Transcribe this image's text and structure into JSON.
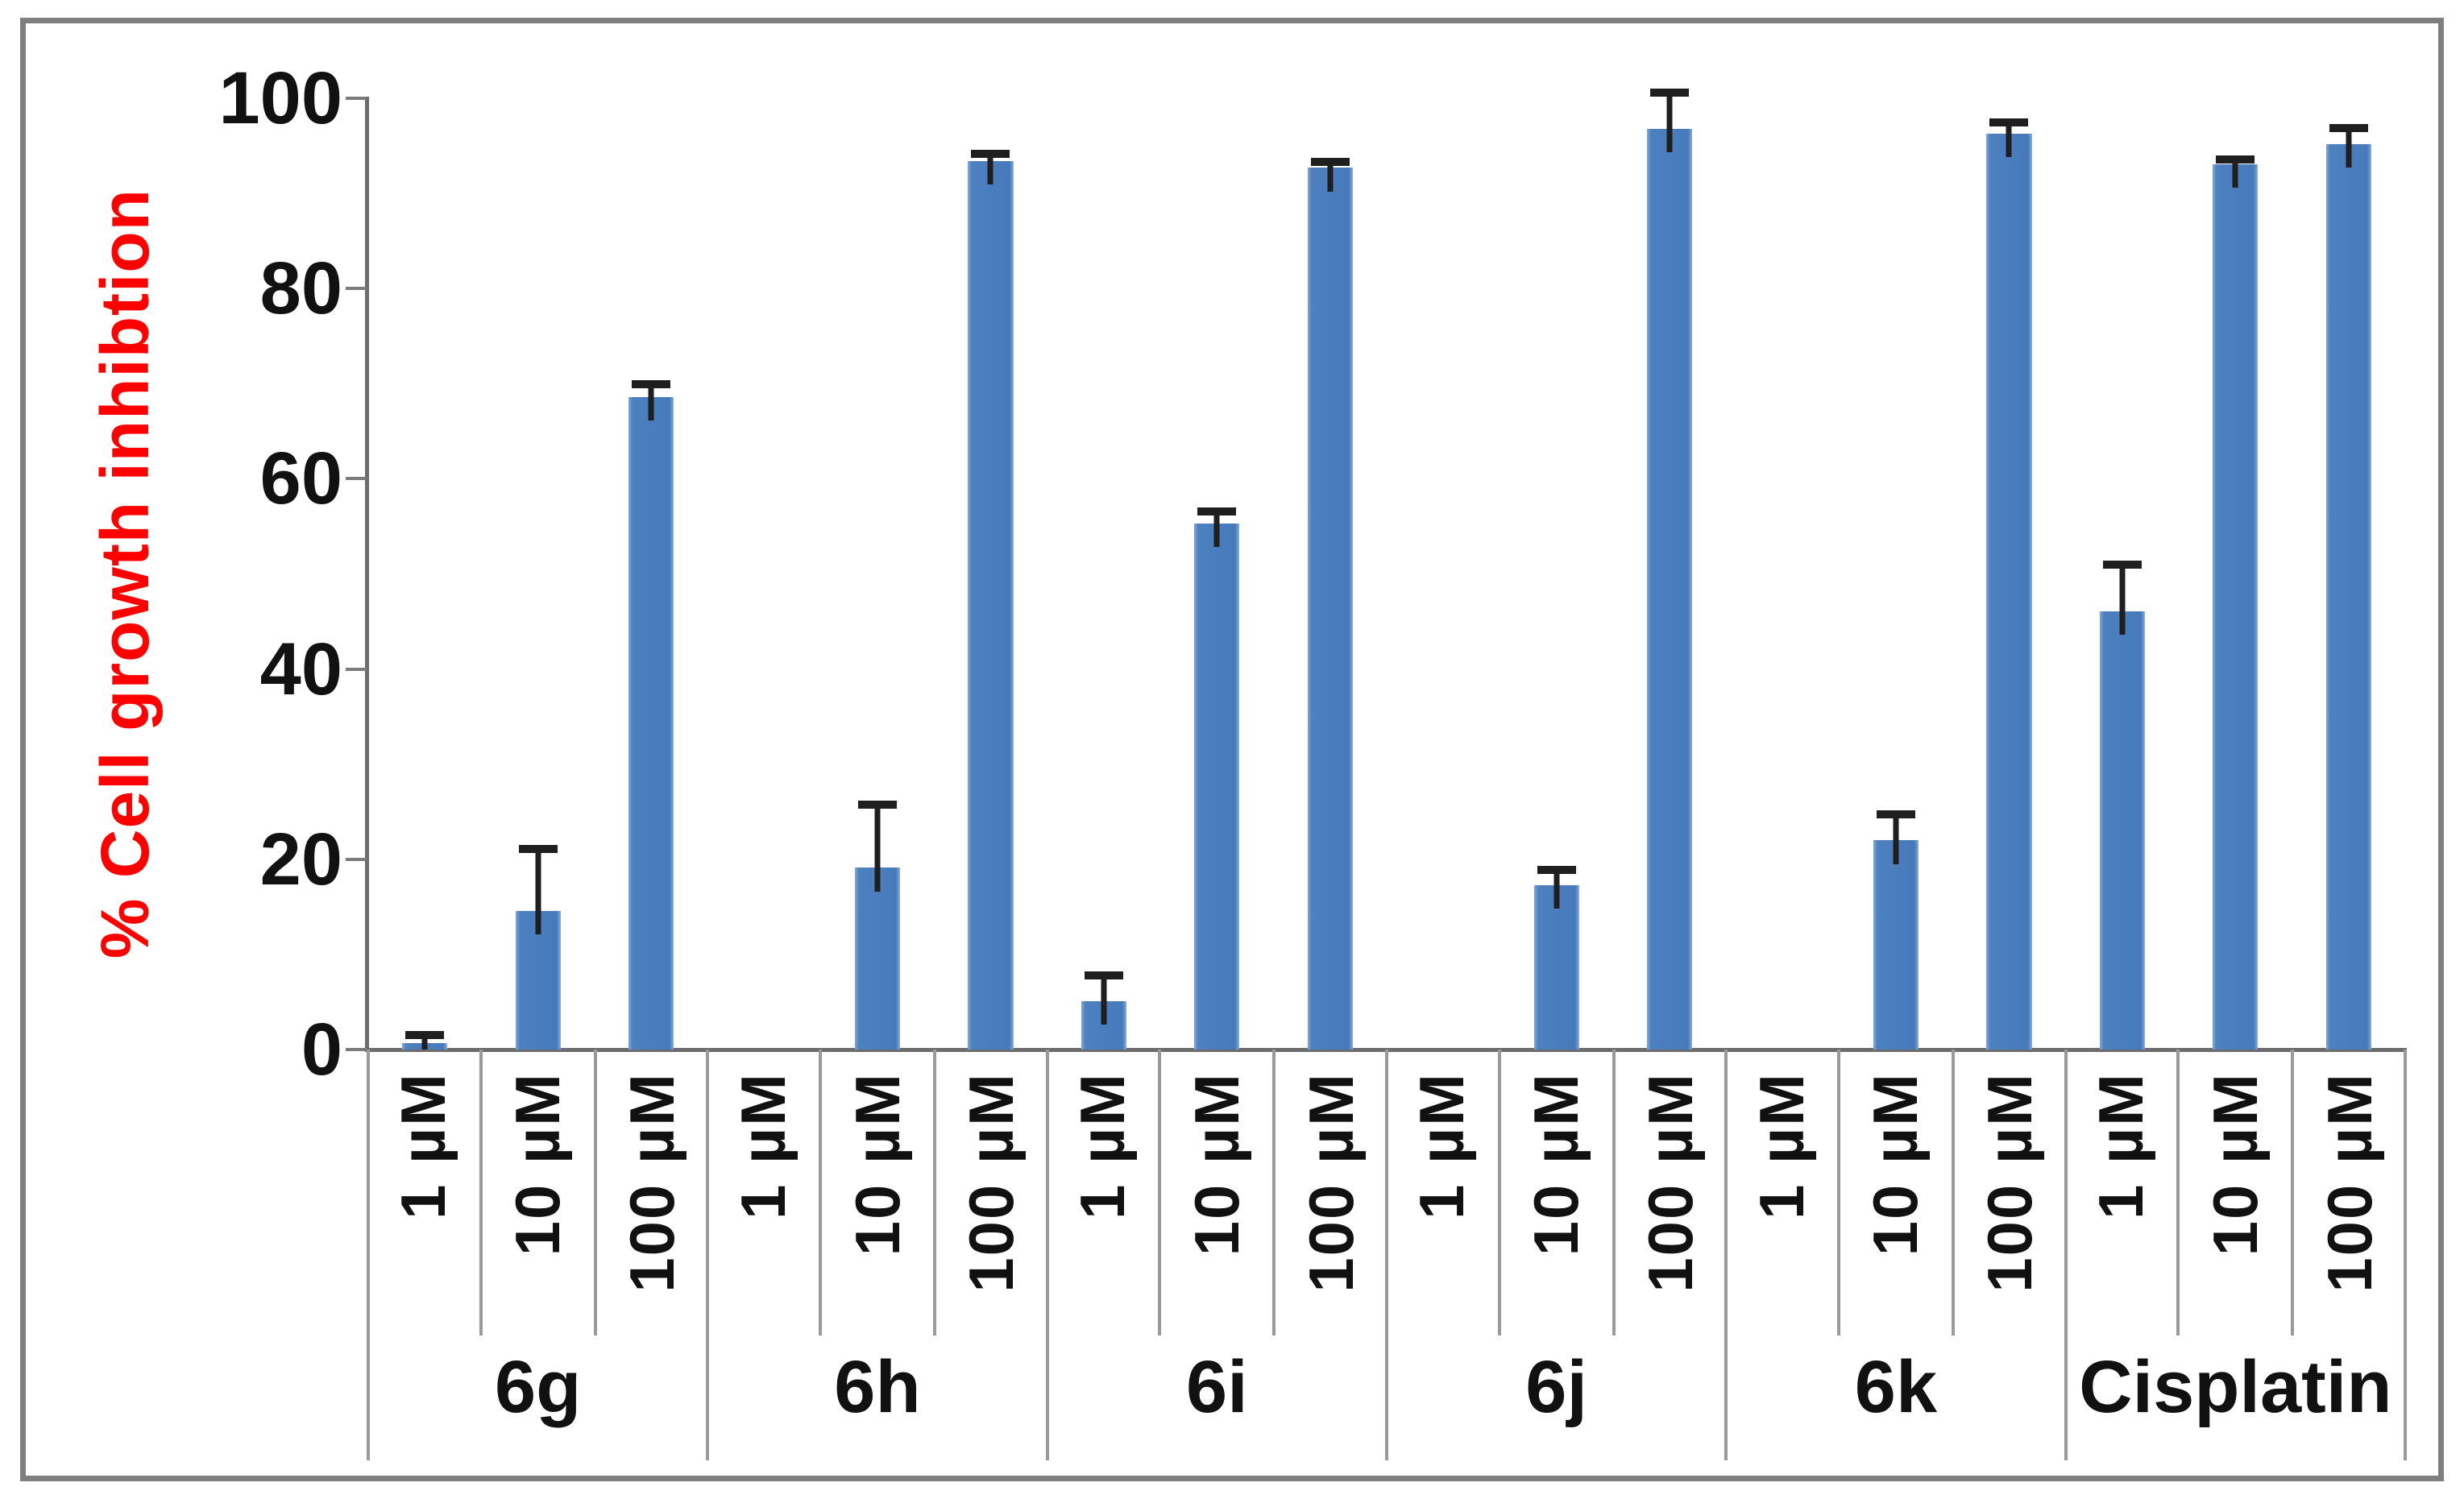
{
  "figure": {
    "background": "#ffffff",
    "border_color": "#7f7f7f"
  },
  "chart_data": {
    "type": "bar",
    "title": "",
    "ylabel": "% Cell growth inhibtion",
    "ylabel_color": "#ff0000",
    "xlabel": "",
    "ylim": [
      0,
      100
    ],
    "yticks": [
      0,
      20,
      40,
      60,
      80,
      100
    ],
    "grid": false,
    "legend": null,
    "bar_color": "#4F81BD",
    "error_bar_color": "#1f1f1f",
    "concentration_labels": [
      "1 µM",
      "10 µM",
      "100 µM"
    ],
    "groups": [
      {
        "label": "6g",
        "values": [
          0.7,
          14.6,
          68.6
        ],
        "errors": [
          0.8,
          6.5,
          1.3
        ]
      },
      {
        "label": "6h",
        "values": [
          0,
          19.1,
          93.4
        ],
        "errors": [
          0,
          6.6,
          0.8
        ]
      },
      {
        "label": "6i",
        "values": [
          5.1,
          55.3,
          92.7
        ],
        "errors": [
          2.7,
          1.3,
          0.6
        ]
      },
      {
        "label": "6j",
        "values": [
          0,
          17.3,
          96.8
        ],
        "errors": [
          0,
          1.6,
          3.8
        ]
      },
      {
        "label": "6k",
        "values": [
          0,
          22.0,
          96.3
        ],
        "errors": [
          0,
          2.7,
          1.2
        ]
      },
      {
        "label": "Cisplatin",
        "values": [
          46.1,
          93.1,
          95.2
        ],
        "errors": [
          4.9,
          0.5,
          1.7
        ]
      }
    ]
  }
}
